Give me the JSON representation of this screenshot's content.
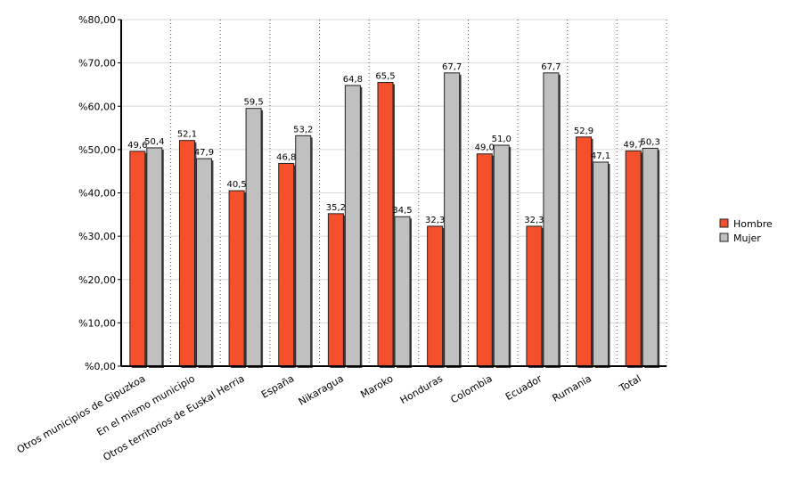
{
  "chart_data": {
    "type": "bar",
    "categories": [
      "Otros municipios de Gipuzkoa",
      "En el mismo municipio",
      "Otros territorios de Euskal Herria",
      "España",
      "Nikaragua",
      "Maroko",
      "Honduras",
      "Colombia",
      "Ecuador",
      "Rumania",
      "Total"
    ],
    "series": [
      {
        "name": "Hombre",
        "color": "#f4502c",
        "values": [
          49.6,
          52.1,
          40.5,
          46.8,
          35.2,
          65.5,
          32.3,
          49.0,
          32.3,
          52.9,
          49.7
        ],
        "value_labels": [
          "49,6",
          "52,1",
          "40,5",
          "46,8",
          "35,2",
          "65,5",
          "32,3",
          "49,0",
          "32,3",
          "52,9",
          "49,7"
        ]
      },
      {
        "name": "Mujer",
        "color": "#c0c0c0",
        "values": [
          50.4,
          47.9,
          59.5,
          53.2,
          64.8,
          34.5,
          67.7,
          51.0,
          67.7,
          47.1,
          50.3
        ],
        "value_labels": [
          "50,4",
          "47,9",
          "59,5",
          "53,2",
          "64,8",
          "34,5",
          "67,7",
          "51,0",
          "67,7",
          "47,1",
          "50,3"
        ]
      }
    ],
    "ylim": [
      0,
      80
    ],
    "yticks": [
      {
        "value": 0,
        "label": "%0,00"
      },
      {
        "value": 10,
        "label": "%10,00"
      },
      {
        "value": 20,
        "label": "%20,00"
      },
      {
        "value": 30,
        "label": "%30,00"
      },
      {
        "value": 40,
        "label": "%40,00"
      },
      {
        "value": 50,
        "label": "%50,00"
      },
      {
        "value": 60,
        "label": "%60,00"
      },
      {
        "value": 70,
        "label": "%70,00"
      },
      {
        "value": 80,
        "label": "%80,00"
      }
    ],
    "grid": true,
    "legend": "right"
  }
}
